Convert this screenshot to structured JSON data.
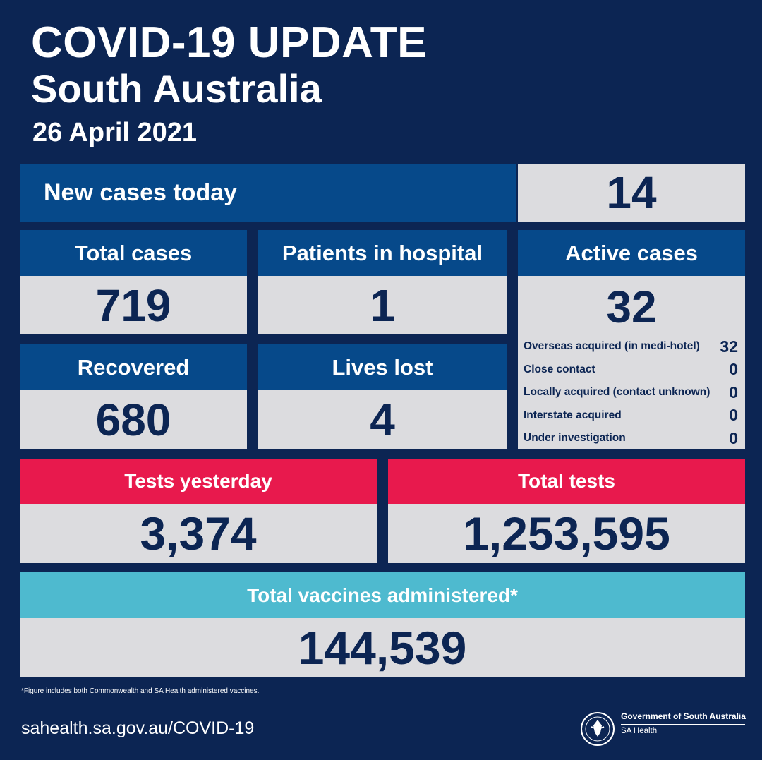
{
  "header": {
    "title": "COVID-19 UPDATE",
    "subtitle": "South Australia",
    "date": "26 April 2021"
  },
  "new_cases": {
    "label": "New cases today",
    "value": "14"
  },
  "total_cases": {
    "label": "Total cases",
    "value": "719"
  },
  "hospital": {
    "label": "Patients in hospital",
    "value": "1"
  },
  "recovered": {
    "label": "Recovered",
    "value": "680"
  },
  "lives_lost": {
    "label": "Lives lost",
    "value": "4"
  },
  "active": {
    "label": "Active cases",
    "value": "32",
    "breakdown": [
      {
        "label": "Overseas acquired (in medi-hotel)",
        "value": "32"
      },
      {
        "label": "Close contact",
        "value": "0"
      },
      {
        "label": "Locally acquired (contact unknown)",
        "value": "0"
      },
      {
        "label": "Interstate acquired",
        "value": "0"
      },
      {
        "label": "Under investigation",
        "value": "0"
      }
    ]
  },
  "tests_yesterday": {
    "label": "Tests yesterday",
    "value": "3,374"
  },
  "total_tests": {
    "label": "Total tests",
    "value": "1,253,595"
  },
  "vaccines": {
    "label": "Total vaccines administered*",
    "value": "144,539"
  },
  "footnote": "*Figure includes both Commonwealth and SA Health administered vaccines.",
  "footer": {
    "url": "sahealth.sa.gov.au/COVID-19",
    "gov_line1": "Government of South Australia",
    "gov_line2": "SA Health",
    "crest_icon": "sa-government-crest-icon"
  },
  "colors": {
    "background": "#0c2553",
    "header_blue": "#06498a",
    "tests_red": "#e8194d",
    "vaccine_cyan": "#4ebacf",
    "value_panel": "#dcdcdf"
  }
}
